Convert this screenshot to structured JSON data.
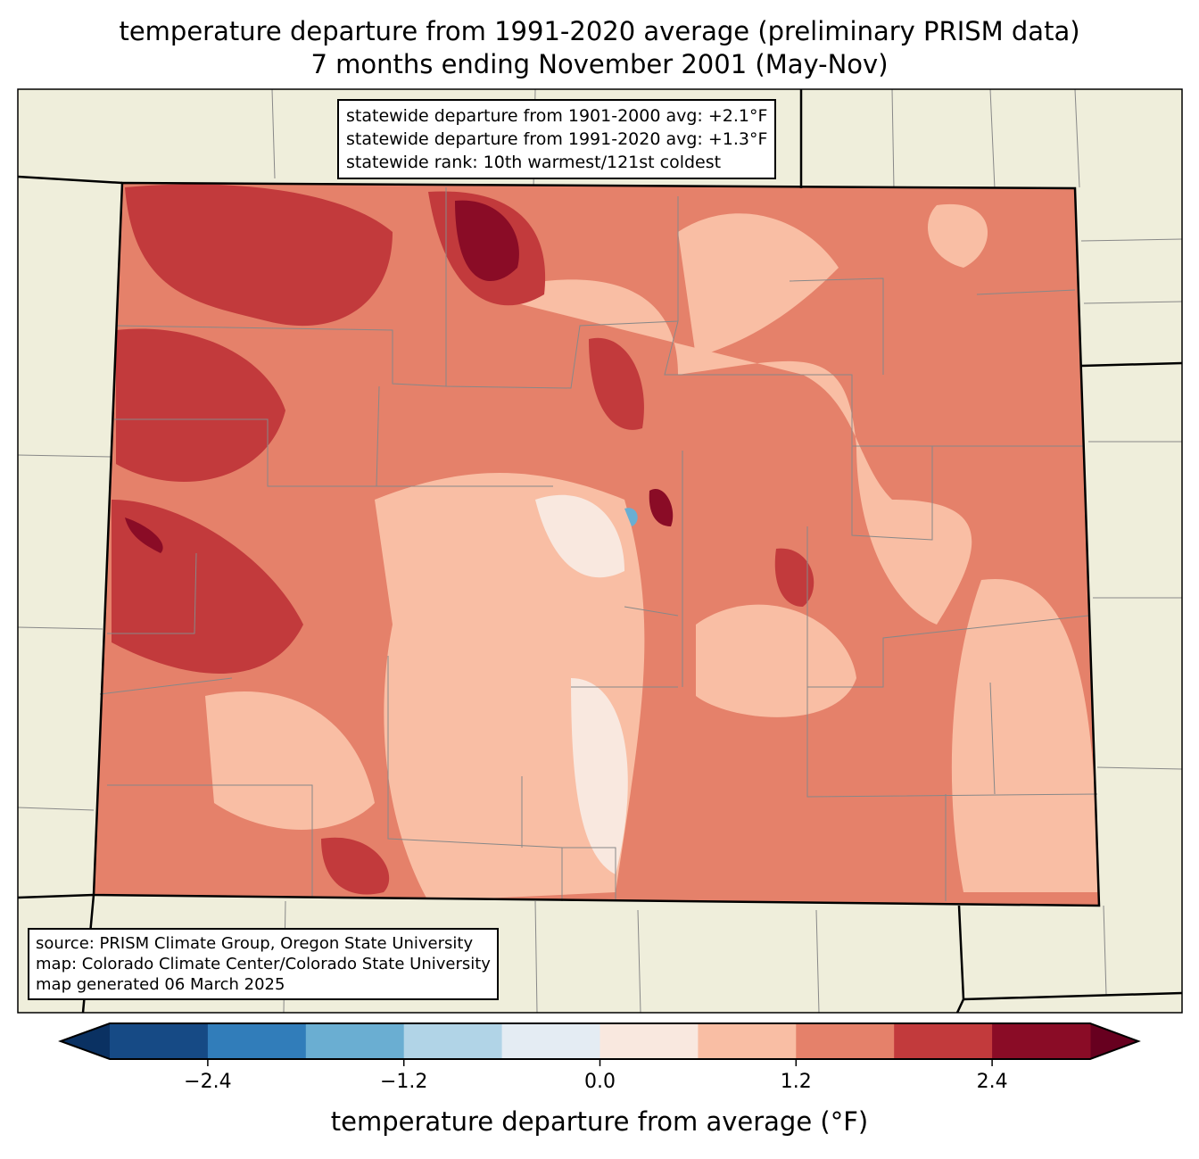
{
  "title": {
    "line1": "temperature departure from 1991-2020 average (preliminary PRISM data)",
    "line2": "7 months ending November 2001 (May-Nov)"
  },
  "stats_box": {
    "line1": "statewide departure from 1901-2000 avg: +2.1°F",
    "line2": "statewide departure from 1991-2020 avg: +1.3°F",
    "line3": "statewide rank: 10th warmest/121st coldest"
  },
  "source_box": {
    "line1": "source: PRISM Climate Group, Oregon State University",
    "line2": "map: Colorado Climate Center/Colorado State University",
    "line3": "map generated 06 March 2025"
  },
  "colors": {
    "land": "#efeedb",
    "under": "#0a3162",
    "over": "#67001f",
    "bins": [
      "#164a85",
      "#317dba",
      "#6aaed2",
      "#b1d4e7",
      "#e4ecf3",
      "#f9e8df",
      "#f9bea4",
      "#e5816a",
      "#c23a3c",
      "#8a0c26"
    ]
  },
  "colorbar": {
    "min": -3.0,
    "max": 3.0,
    "step": 0.6,
    "ticks": [
      "−2.4",
      "−1.2",
      "0.0",
      "1.2",
      "2.4"
    ],
    "tick_values": [
      -2.4,
      -1.2,
      0.0,
      1.2,
      2.4
    ],
    "label": "temperature departure from average (°F)"
  }
}
